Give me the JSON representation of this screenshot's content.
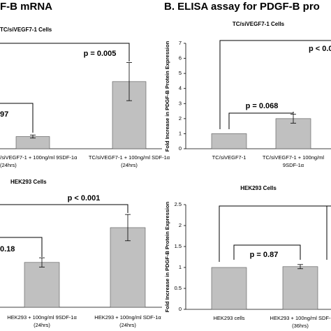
{
  "header": {
    "left": "F-B mRNA",
    "right": "B. ELISA assay for PDGF-B pro"
  },
  "chart_data": [
    {
      "type": "bar",
      "subtitle": "TC/siVEGF7-1 Cells",
      "categories": [
        [
          "/siVEGF7-1 + 100ng/ml 9SDF-1α",
          "(24hrs)"
        ],
        [
          "TC/siVEGF7-1 + 100ng/ml SDF-1α",
          "(24hrs)"
        ]
      ],
      "values": [
        0.16,
        0.88
      ],
      "errors": [
        0.02,
        0.25
      ],
      "color": "#c0c0c0",
      "ylim": [
        0,
        1.4
      ],
      "annotations": [
        {
          "text": "p = 0.005"
        },
        {
          "text": "97"
        }
      ]
    },
    {
      "type": "bar",
      "subtitle": "HEK293 Cells",
      "categories": [
        [
          "HEK293 + 100ng/ml 9SDF-1α",
          "(24hrs)"
        ],
        [
          "HEK293 + 100ng/ml SDF-1α",
          "(24hrs)"
        ]
      ],
      "values": [
        0.58,
        1.03
      ],
      "errors": [
        0.06,
        0.17
      ],
      "color": "#c0c0c0",
      "ylim": [
        0,
        1.4
      ],
      "annotations": [
        {
          "text": "p < 0.001"
        },
        {
          "text": "0.18"
        }
      ]
    },
    {
      "type": "bar",
      "subtitle": "TC/siVEGF7-1 Cells",
      "ylabel": "Fold Increase in PDGF-B Protein Expression",
      "categories": [
        [
          "TC/siVEGF7-1"
        ],
        [
          "TC/siVEGF7-1 + 100ng/ml",
          "9SDF-1α"
        ]
      ],
      "values": [
        1.0,
        2.0
      ],
      "errors": [
        0,
        0.3
      ],
      "color": "#c0c0c0",
      "ylim": [
        0,
        7
      ],
      "yticks": [
        0,
        1,
        2,
        3,
        4,
        5,
        6,
        7
      ],
      "annotations": [
        {
          "text": "p < 0.0"
        },
        {
          "text": "p = 0.068"
        }
      ]
    },
    {
      "type": "bar",
      "subtitle": "HEK293 Cells",
      "ylabel": "Fold Increase in PDGF-B Protein Expression",
      "categories": [
        [
          "HEK293 cells"
        ],
        [
          "HEK293 + 100ng/ml SDF-",
          "(36hrs)"
        ]
      ],
      "values": [
        1.0,
        1.02
      ],
      "errors": [
        0,
        0.05
      ],
      "color": "#c0c0c0",
      "ylim": [
        0,
        2.5
      ],
      "yticks": [
        0,
        0.5,
        1,
        1.5,
        2,
        2.5
      ],
      "annotations": [
        {
          "text": "p = 0.87"
        }
      ]
    }
  ]
}
